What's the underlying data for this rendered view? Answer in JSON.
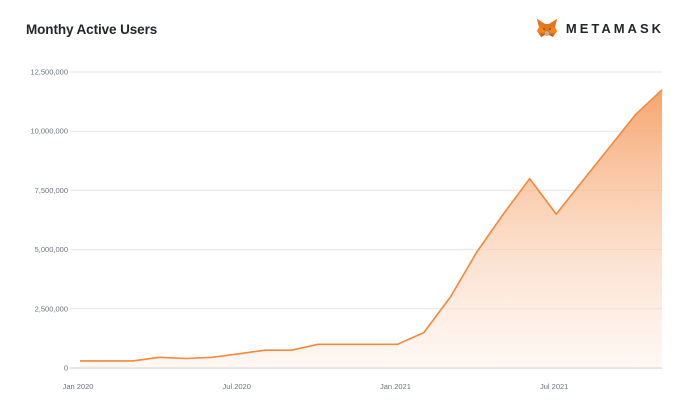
{
  "brand": {
    "name": "METAMASK",
    "logo_icon": "fox-icon"
  },
  "chart_data": {
    "type": "area",
    "title": "Monthy Active Users",
    "xlabel": "",
    "ylabel": "",
    "color": "#f6851b",
    "x_tick_labels": [
      "Jan 2020",
      "Jul 2020",
      "Jan 2021",
      "Jul 2021"
    ],
    "y_tick_labels": [
      "0",
      "2,500,000",
      "5,000,000",
      "7,500,000",
      "10,000,000",
      "12,500,000"
    ],
    "y_ticks": [
      0,
      2500000,
      5000000,
      7500000,
      10000000,
      12500000
    ],
    "ylim": [
      0,
      12500000
    ],
    "grid": true,
    "x": [
      "2020-01-01",
      "2020-02-01",
      "2020-03-01",
      "2020-04-01",
      "2020-05-01",
      "2020-06-01",
      "2020-07-01",
      "2020-08-01",
      "2020-09-01",
      "2020-10-01",
      "2020-11-01",
      "2020-12-01",
      "2021-01-01",
      "2021-02-01",
      "2021-03-01",
      "2021-04-01",
      "2021-05-01",
      "2021-06-01",
      "2021-07-01",
      "2021-08-01",
      "2021-09-01",
      "2021-10-01",
      "2021-11-01"
    ],
    "series": [
      {
        "values": [
          300000,
          300000,
          300000,
          450000,
          400000,
          450000,
          600000,
          750000,
          750000,
          1000000,
          1000000,
          1000000,
          1000000,
          1500000,
          3000000,
          4900000,
          6500000,
          8000000,
          6500000,
          7900000,
          9300000,
          10700000,
          11750000
        ]
      }
    ]
  }
}
